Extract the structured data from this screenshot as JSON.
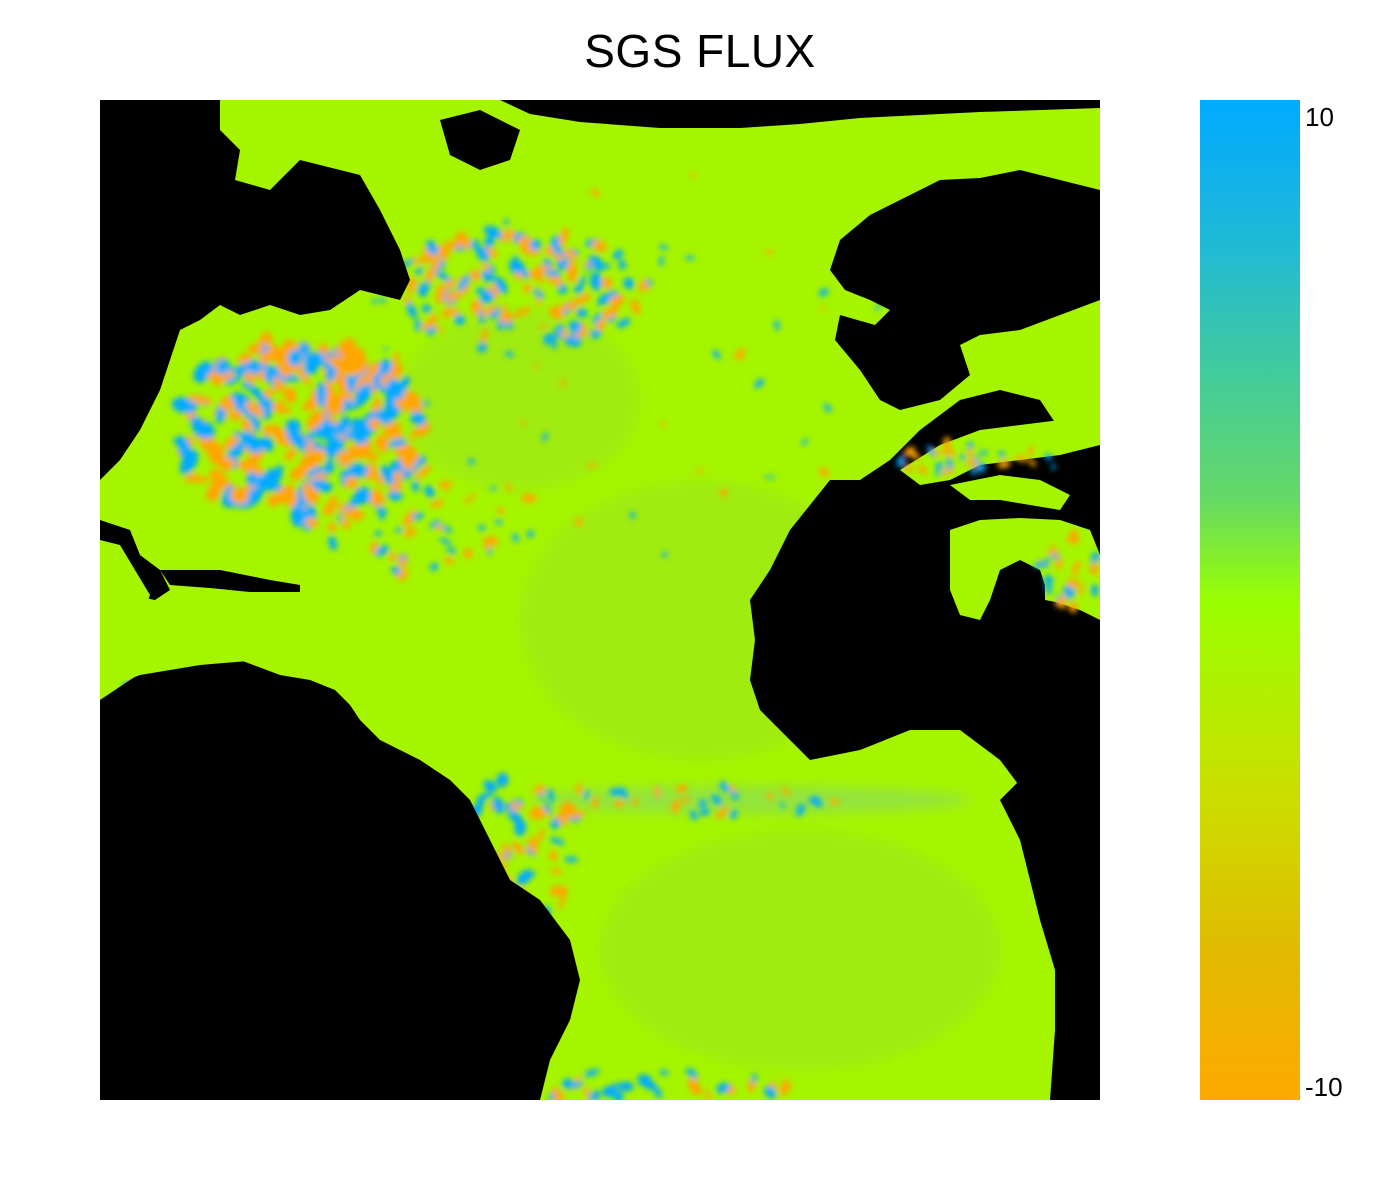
{
  "title": "SGS FLUX",
  "colorbar": {
    "max_label": "10",
    "min_label": "-10",
    "max": 10,
    "min": -10,
    "colors": [
      "#00aaff",
      "#1fb9d8",
      "#44cc99",
      "#66d966",
      "#99ff00",
      "#ccdd00",
      "#e0bb00",
      "#ffaa00"
    ]
  },
  "map": {
    "land_color": "#000000",
    "ocean_base_color": "#a5f500",
    "positive_color": "#00aaff",
    "negative_color": "#ffa500"
  }
}
